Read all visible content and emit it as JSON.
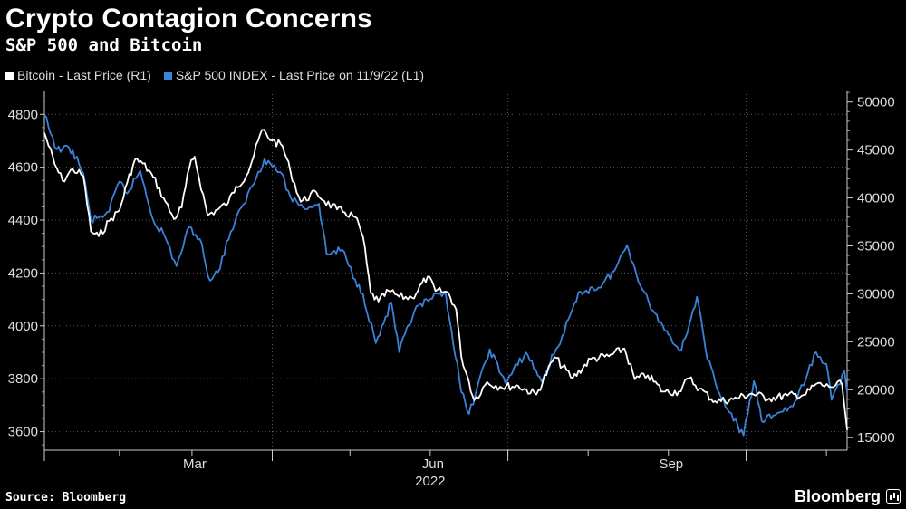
{
  "header": {
    "title": "Crypto Contagion Concerns",
    "subtitle": "S&P 500 and Bitcoin"
  },
  "legend": [
    {
      "label": "Bitcoin - Last Price (R1)",
      "color": "#ffffff"
    },
    {
      "label": "S&P 500 INDEX - Last Price on 11/9/22 (L1)",
      "color": "#3b82d9"
    }
  ],
  "footer": {
    "source": "Source: Bloomberg",
    "brand": "Bloomberg"
  },
  "chart_data": {
    "type": "line",
    "x_tick_labels": [
      "Mar",
      "Jun",
      "Sep"
    ],
    "x_year_label": "2022",
    "x_range": [
      "2022-01-03",
      "2022-11-09"
    ],
    "left_axis": {
      "ylim": [
        3530,
        4890
      ],
      "ticks": [
        3600,
        3800,
        4000,
        4200,
        4400,
        4600,
        4800
      ],
      "labels": [
        "3600",
        "3800",
        "4000",
        "4200",
        "4400",
        "4600",
        "4800"
      ]
    },
    "right_axis": {
      "ylim": [
        13700,
        51200
      ],
      "ticks": [
        15000,
        20000,
        25000,
        30000,
        35000,
        40000,
        45000,
        50000
      ],
      "labels": [
        "15000",
        "20000",
        "25000",
        "30000",
        "35000",
        "40000",
        "45000",
        "50000"
      ]
    },
    "grid": true,
    "series": [
      {
        "name": "Bitcoin - Last Price (R1)",
        "axis": "right",
        "color": "#ffffff",
        "x": [
          "2022-01-03",
          "2022-01-07",
          "2022-01-10",
          "2022-01-14",
          "2022-01-18",
          "2022-01-21",
          "2022-01-24",
          "2022-01-28",
          "2022-02-01",
          "2022-02-04",
          "2022-02-07",
          "2022-02-10",
          "2022-02-14",
          "2022-02-18",
          "2022-02-22",
          "2022-02-25",
          "2022-02-28",
          "2022-03-02",
          "2022-03-07",
          "2022-03-11",
          "2022-03-15",
          "2022-03-18",
          "2022-03-22",
          "2022-03-25",
          "2022-03-28",
          "2022-04-01",
          "2022-04-05",
          "2022-04-08",
          "2022-04-12",
          "2022-04-18",
          "2022-04-21",
          "2022-04-26",
          "2022-04-29",
          "2022-05-03",
          "2022-05-06",
          "2022-05-09",
          "2022-05-12",
          "2022-05-16",
          "2022-05-20",
          "2022-05-25",
          "2022-05-31",
          "2022-06-03",
          "2022-06-08",
          "2022-06-11",
          "2022-06-13",
          "2022-06-16",
          "2022-06-18",
          "2022-06-23",
          "2022-06-28",
          "2022-07-05",
          "2022-07-12",
          "2022-07-19",
          "2022-07-26",
          "2022-08-02",
          "2022-08-09",
          "2022-08-15",
          "2022-08-19",
          "2022-08-24",
          "2022-08-30",
          "2022-09-05",
          "2022-09-09",
          "2022-09-13",
          "2022-09-19",
          "2022-09-26",
          "2022-10-03",
          "2022-10-10",
          "2022-10-17",
          "2022-10-24",
          "2022-10-28",
          "2022-11-02",
          "2022-11-07",
          "2022-11-09"
        ],
        "values": [
          46800,
          43500,
          41800,
          43000,
          42300,
          36500,
          36000,
          37600,
          38700,
          41600,
          44000,
          43600,
          42200,
          40000,
          37800,
          39000,
          43200,
          44300,
          38200,
          38800,
          39500,
          41200,
          42300,
          44500,
          47100,
          46000,
          45400,
          42800,
          39600,
          40600,
          39700,
          38800,
          38500,
          38000,
          36000,
          30100,
          29200,
          30300,
          29700,
          29600,
          31800,
          30300,
          30100,
          28400,
          23500,
          20800,
          18900,
          20800,
          20300,
          20400,
          19500,
          23400,
          21200,
          23200,
          23500,
          24300,
          21100,
          21500,
          19800,
          19800,
          21200,
          20100,
          18800,
          19000,
          19600,
          19100,
          19400,
          19500,
          20600,
          20300,
          20600,
          15800
        ]
      },
      {
        "name": "S&P 500 INDEX - Last Price on 11/9/22 (L1)",
        "axis": "left",
        "color": "#3b82d9",
        "x": [
          "2022-01-03",
          "2022-01-07",
          "2022-01-10",
          "2022-01-14",
          "2022-01-18",
          "2022-01-21",
          "2022-01-24",
          "2022-01-28",
          "2022-02-01",
          "2022-02-04",
          "2022-02-09",
          "2022-02-14",
          "2022-02-18",
          "2022-02-23",
          "2022-02-28",
          "2022-03-04",
          "2022-03-08",
          "2022-03-11",
          "2022-03-16",
          "2022-03-21",
          "2022-03-29",
          "2022-04-04",
          "2022-04-08",
          "2022-04-13",
          "2022-04-19",
          "2022-04-22",
          "2022-04-28",
          "2022-05-03",
          "2022-05-06",
          "2022-05-11",
          "2022-05-17",
          "2022-05-20",
          "2022-05-26",
          "2022-06-01",
          "2022-06-07",
          "2022-06-13",
          "2022-06-16",
          "2022-06-24",
          "2022-06-30",
          "2022-07-08",
          "2022-07-14",
          "2022-07-22",
          "2022-07-29",
          "2022-08-05",
          "2022-08-11",
          "2022-08-16",
          "2022-08-22",
          "2022-08-26",
          "2022-09-01",
          "2022-09-06",
          "2022-09-12",
          "2022-09-16",
          "2022-09-23",
          "2022-09-30",
          "2022-10-04",
          "2022-10-07",
          "2022-10-13",
          "2022-10-19",
          "2022-10-24",
          "2022-10-28",
          "2022-11-01",
          "2022-11-03",
          "2022-11-08",
          "2022-11-09"
        ],
        "values": [
          4797,
          4677,
          4670,
          4663,
          4577,
          4398,
          4410,
          4432,
          4546,
          4501,
          4587,
          4401,
          4349,
          4226,
          4374,
          4329,
          4171,
          4204,
          4357,
          4461,
          4632,
          4582,
          4488,
          4447,
          4462,
          4272,
          4288,
          4175,
          4123,
          3935,
          4088,
          3901,
          4058,
          4101,
          4121,
          3750,
          3667,
          3912,
          3785,
          3899,
          3790,
          3962,
          4130,
          4145,
          4207,
          4305,
          4137,
          4058,
          3967,
          3908,
          4110,
          3873,
          3694,
          3586,
          3791,
          3640,
          3670,
          3695,
          3797,
          3901,
          3856,
          3720,
          3829,
          3749
        ]
      }
    ]
  }
}
